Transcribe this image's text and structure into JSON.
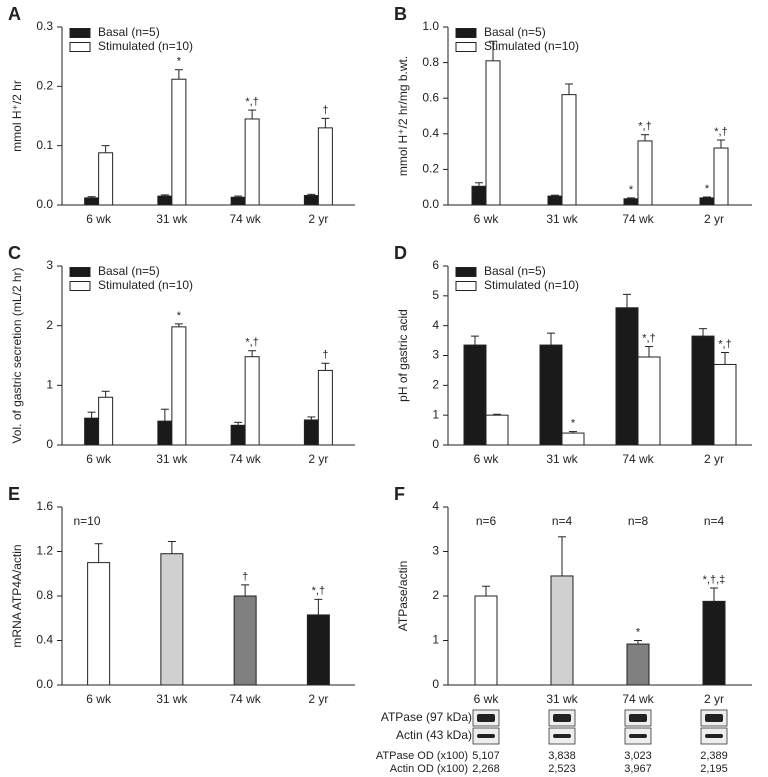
{
  "chart_data": [
    {
      "type": "bar",
      "label": "A",
      "ylabel": "mmol H⁺/2 hr",
      "categories": [
        "6 wk",
        "31 wk",
        "74 wk",
        "2 yr"
      ],
      "series": [
        {
          "name": "Basal (n=5)",
          "color": "#1a1a1a",
          "values": [
            0.012,
            0.015,
            0.013,
            0.016
          ],
          "errors": [
            0.002,
            0.002,
            0.002,
            0.002
          ],
          "annotations": [
            null,
            null,
            null,
            null
          ]
        },
        {
          "name": "Stimulated (n=10)",
          "color": "#ffffff",
          "values": [
            0.088,
            0.212,
            0.145,
            0.13
          ],
          "errors": [
            0.012,
            0.016,
            0.015,
            0.016
          ],
          "annotations": [
            null,
            "*",
            "*,†",
            "†"
          ]
        }
      ],
      "ylim": [
        0,
        0.3
      ],
      "yticks": [
        {
          "value": 0,
          "label": "0.0"
        },
        0.1,
        0.2,
        0.3
      ],
      "legend": "top-left"
    },
    {
      "type": "bar",
      "label": "B",
      "ylabel": "mmol H⁺/2 hr/mg b.wt.",
      "categories": [
        "6 wk",
        "31 wk",
        "74 wk",
        "2 yr"
      ],
      "series": [
        {
          "name": "Basal (n=5)",
          "color": "#1a1a1a",
          "values": [
            0.105,
            0.05,
            0.035,
            0.04
          ],
          "errors": [
            0.02,
            0.005,
            0.005,
            0.005
          ],
          "annotations": [
            null,
            null,
            "*",
            "*"
          ]
        },
        {
          "name": "Stimulated (n=10)",
          "color": "#ffffff",
          "values": [
            0.81,
            0.62,
            0.36,
            0.32
          ],
          "errors": [
            0.11,
            0.06,
            0.035,
            0.045
          ],
          "annotations": [
            null,
            null,
            "*,†",
            "*,†"
          ]
        }
      ],
      "ylim": [
        0,
        1.0
      ],
      "yticks": [
        {
          "value": 0,
          "label": "0.0"
        },
        0.2,
        0.4,
        0.6,
        0.8,
        {
          "value": 1.0,
          "label": "1.0"
        }
      ],
      "legend": "top-left"
    },
    {
      "type": "bar",
      "label": "C",
      "ylabel": "Vol. of gastric secretion (mL/2 hr)",
      "categories": [
        "6 wk",
        "31 wk",
        "74 wk",
        "2 yr"
      ],
      "series": [
        {
          "name": "Basal (n=5)",
          "color": "#1a1a1a",
          "values": [
            0.45,
            0.4,
            0.33,
            0.42
          ],
          "errors": [
            0.1,
            0.2,
            0.05,
            0.05
          ],
          "annotations": [
            null,
            null,
            null,
            null
          ]
        },
        {
          "name": "Stimulated (n=10)",
          "color": "#ffffff",
          "values": [
            0.8,
            1.98,
            1.48,
            1.25
          ],
          "errors": [
            0.1,
            0.05,
            0.1,
            0.12
          ],
          "annotations": [
            null,
            "*",
            "*,†",
            "†"
          ]
        }
      ],
      "ylim": [
        0,
        3
      ],
      "yticks": [
        0,
        1,
        2,
        3
      ],
      "legend": "top-left"
    },
    {
      "type": "bar",
      "label": "D",
      "ylabel": "pH of gastric acid",
      "categories": [
        "6 wk",
        "31 wk",
        "74 wk",
        "2 yr"
      ],
      "series": [
        {
          "name": "Basal (n=5)",
          "color": "#1a1a1a",
          "values": [
            3.35,
            3.35,
            4.6,
            3.65
          ],
          "errors": [
            0.3,
            0.4,
            0.45,
            0.25
          ],
          "annotations": [
            null,
            null,
            null,
            null
          ]
        },
        {
          "name": "Stimulated (n=10)",
          "color": "#ffffff",
          "values": [
            1.0,
            0.4,
            2.95,
            2.7
          ],
          "errors": [
            0.03,
            0.05,
            0.35,
            0.4
          ],
          "annotations": [
            null,
            "*",
            "*,†",
            "*,†"
          ]
        }
      ],
      "ylim": [
        0,
        6
      ],
      "yticks": [
        0,
        1,
        2,
        3,
        4,
        5,
        6
      ],
      "legend": "top-left"
    },
    {
      "type": "bar",
      "label": "E",
      "ylabel": "mRNA ATP4A/actin",
      "note": "n=10",
      "categories": [
        "6 wk",
        "31 wk",
        "74 wk",
        "2 yr"
      ],
      "values": [
        1.1,
        1.18,
        0.8,
        0.63
      ],
      "errors": [
        0.17,
        0.11,
        0.1,
        0.14
      ],
      "colors": [
        "#ffffff",
        "#d0d0d0",
        "#808080",
        "#1a1a1a"
      ],
      "annotations": [
        null,
        null,
        "†",
        "*,†"
      ],
      "ylim": [
        0,
        1.6
      ],
      "yticks": [
        {
          "value": 0,
          "label": "0.0"
        },
        0.4,
        0.8,
        1.2,
        1.6
      ]
    },
    {
      "type": "bar",
      "label": "F",
      "ylabel": "ATPase/actin",
      "n_labels": [
        "n=6",
        "n=4",
        "n=8",
        "n=4"
      ],
      "categories": [
        "6 wk",
        "31 wk",
        "74 wk",
        "2 yr"
      ],
      "values": [
        2.0,
        2.45,
        0.92,
        1.88
      ],
      "errors": [
        0.22,
        0.88,
        0.08,
        0.3
      ],
      "colors": [
        "#ffffff",
        "#d0d0d0",
        "#808080",
        "#1a1a1a"
      ],
      "annotations": [
        null,
        null,
        "*",
        "*,†,‡"
      ],
      "ylim": [
        0,
        4
      ],
      "yticks": [
        0,
        1,
        2,
        3,
        4
      ]
    }
  ],
  "blot_table": {
    "blots": [
      "ATPase (97 kDa)",
      "Actin (43 kDa)"
    ],
    "rows": [
      {
        "label": "ATPase OD (x100)",
        "values": [
          "5,107",
          "3,838",
          "3,023",
          "2,389"
        ]
      },
      {
        "label": "Actin OD (x100)",
        "values": [
          "2,268",
          "2,523",
          "3,967",
          "2,195"
        ]
      }
    ]
  }
}
